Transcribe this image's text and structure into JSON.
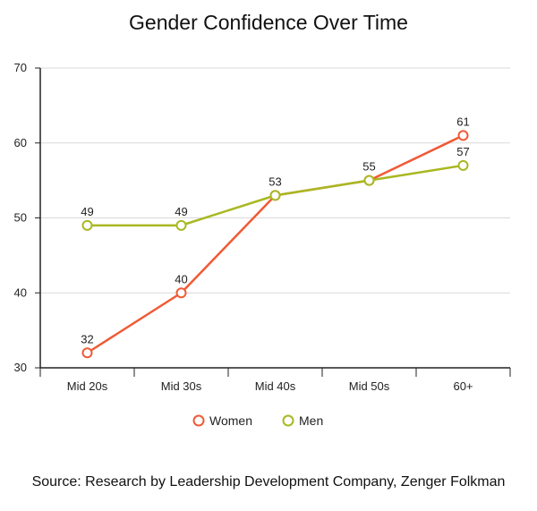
{
  "chart_data": {
    "type": "line",
    "title": "Gender Confidence Over Time",
    "xlabel": "",
    "ylabel": "",
    "categories": [
      "Mid 20s",
      "Mid 30s",
      "Mid 40s",
      "Mid 50s",
      "60+"
    ],
    "ylim": [
      30,
      70
    ],
    "yticks": [
      30,
      40,
      50,
      60,
      70
    ],
    "grid": true,
    "legend": "bottom",
    "series": [
      {
        "name": "Women",
        "color": "#f05a35",
        "values": [
          32,
          40,
          53,
          55,
          61
        ]
      },
      {
        "name": "Men",
        "color": "#a8b820",
        "values": [
          49,
          49,
          53,
          55,
          57
        ]
      }
    ]
  },
  "source": "Source: Research by Leadership Development Company, Zenger Folkman"
}
